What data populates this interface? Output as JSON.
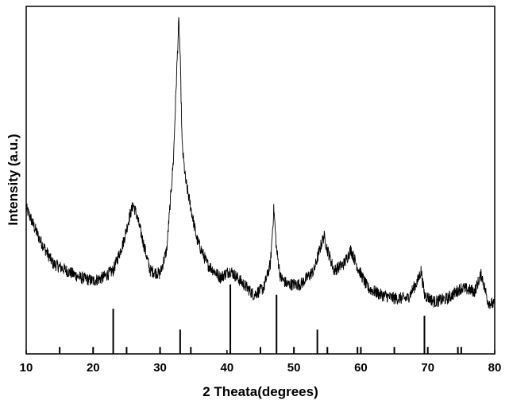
{
  "chart_data": {
    "type": "line",
    "title": "",
    "xlabel": "2 Theata(degrees)",
    "ylabel": "Intensity (a.u.)",
    "xlim": [
      10,
      80
    ],
    "ylim": [
      0,
      100
    ],
    "x_ticks": [
      10,
      20,
      30,
      40,
      50,
      60,
      70,
      80
    ],
    "grid": false,
    "legend": "none",
    "series": [
      {
        "x": [
          10,
          12,
          14,
          16,
          18,
          20,
          21.5,
          23,
          24.5,
          25.5,
          26,
          26.5,
          27.5,
          28.5,
          30,
          31,
          32,
          32.5,
          32.8,
          33,
          33.3,
          33.8,
          34.5,
          35.5,
          37,
          39,
          40.5,
          42,
          44,
          45.5,
          46.5,
          47,
          47.4,
          48,
          49,
          51,
          53,
          54,
          54.5,
          55,
          56,
          57.5,
          58.5,
          59.5,
          61,
          63,
          65,
          67,
          68.5,
          69,
          69.5,
          71,
          73,
          75,
          77,
          78,
          79,
          80
        ],
        "y": [
          42,
          33,
          26,
          24,
          22,
          21,
          22,
          24,
          32,
          40,
          43,
          40,
          32,
          24,
          23,
          30,
          56,
          82,
          96,
          86,
          60,
          50,
          43,
          33,
          26,
          22,
          24,
          21,
          17,
          19,
          26,
          42,
          30,
          22,
          20,
          20,
          24,
          31,
          34,
          30,
          24,
          26,
          30,
          25,
          19,
          17,
          16,
          16,
          21,
          24,
          17,
          15,
          16,
          19,
          18,
          23,
          15,
          14
        ]
      }
    ],
    "reference_lines": {
      "x": [
        15,
        20,
        23,
        25,
        30,
        33,
        34.6,
        40.5,
        45,
        47.4,
        50,
        53.5,
        55,
        59.5,
        60,
        65,
        69.5,
        70,
        74.5,
        75
      ],
      "height": [
        2,
        2,
        13,
        2,
        2,
        7,
        2,
        20,
        2,
        17,
        2,
        7,
        2,
        2,
        2,
        2,
        11,
        2,
        2,
        2
      ]
    }
  }
}
